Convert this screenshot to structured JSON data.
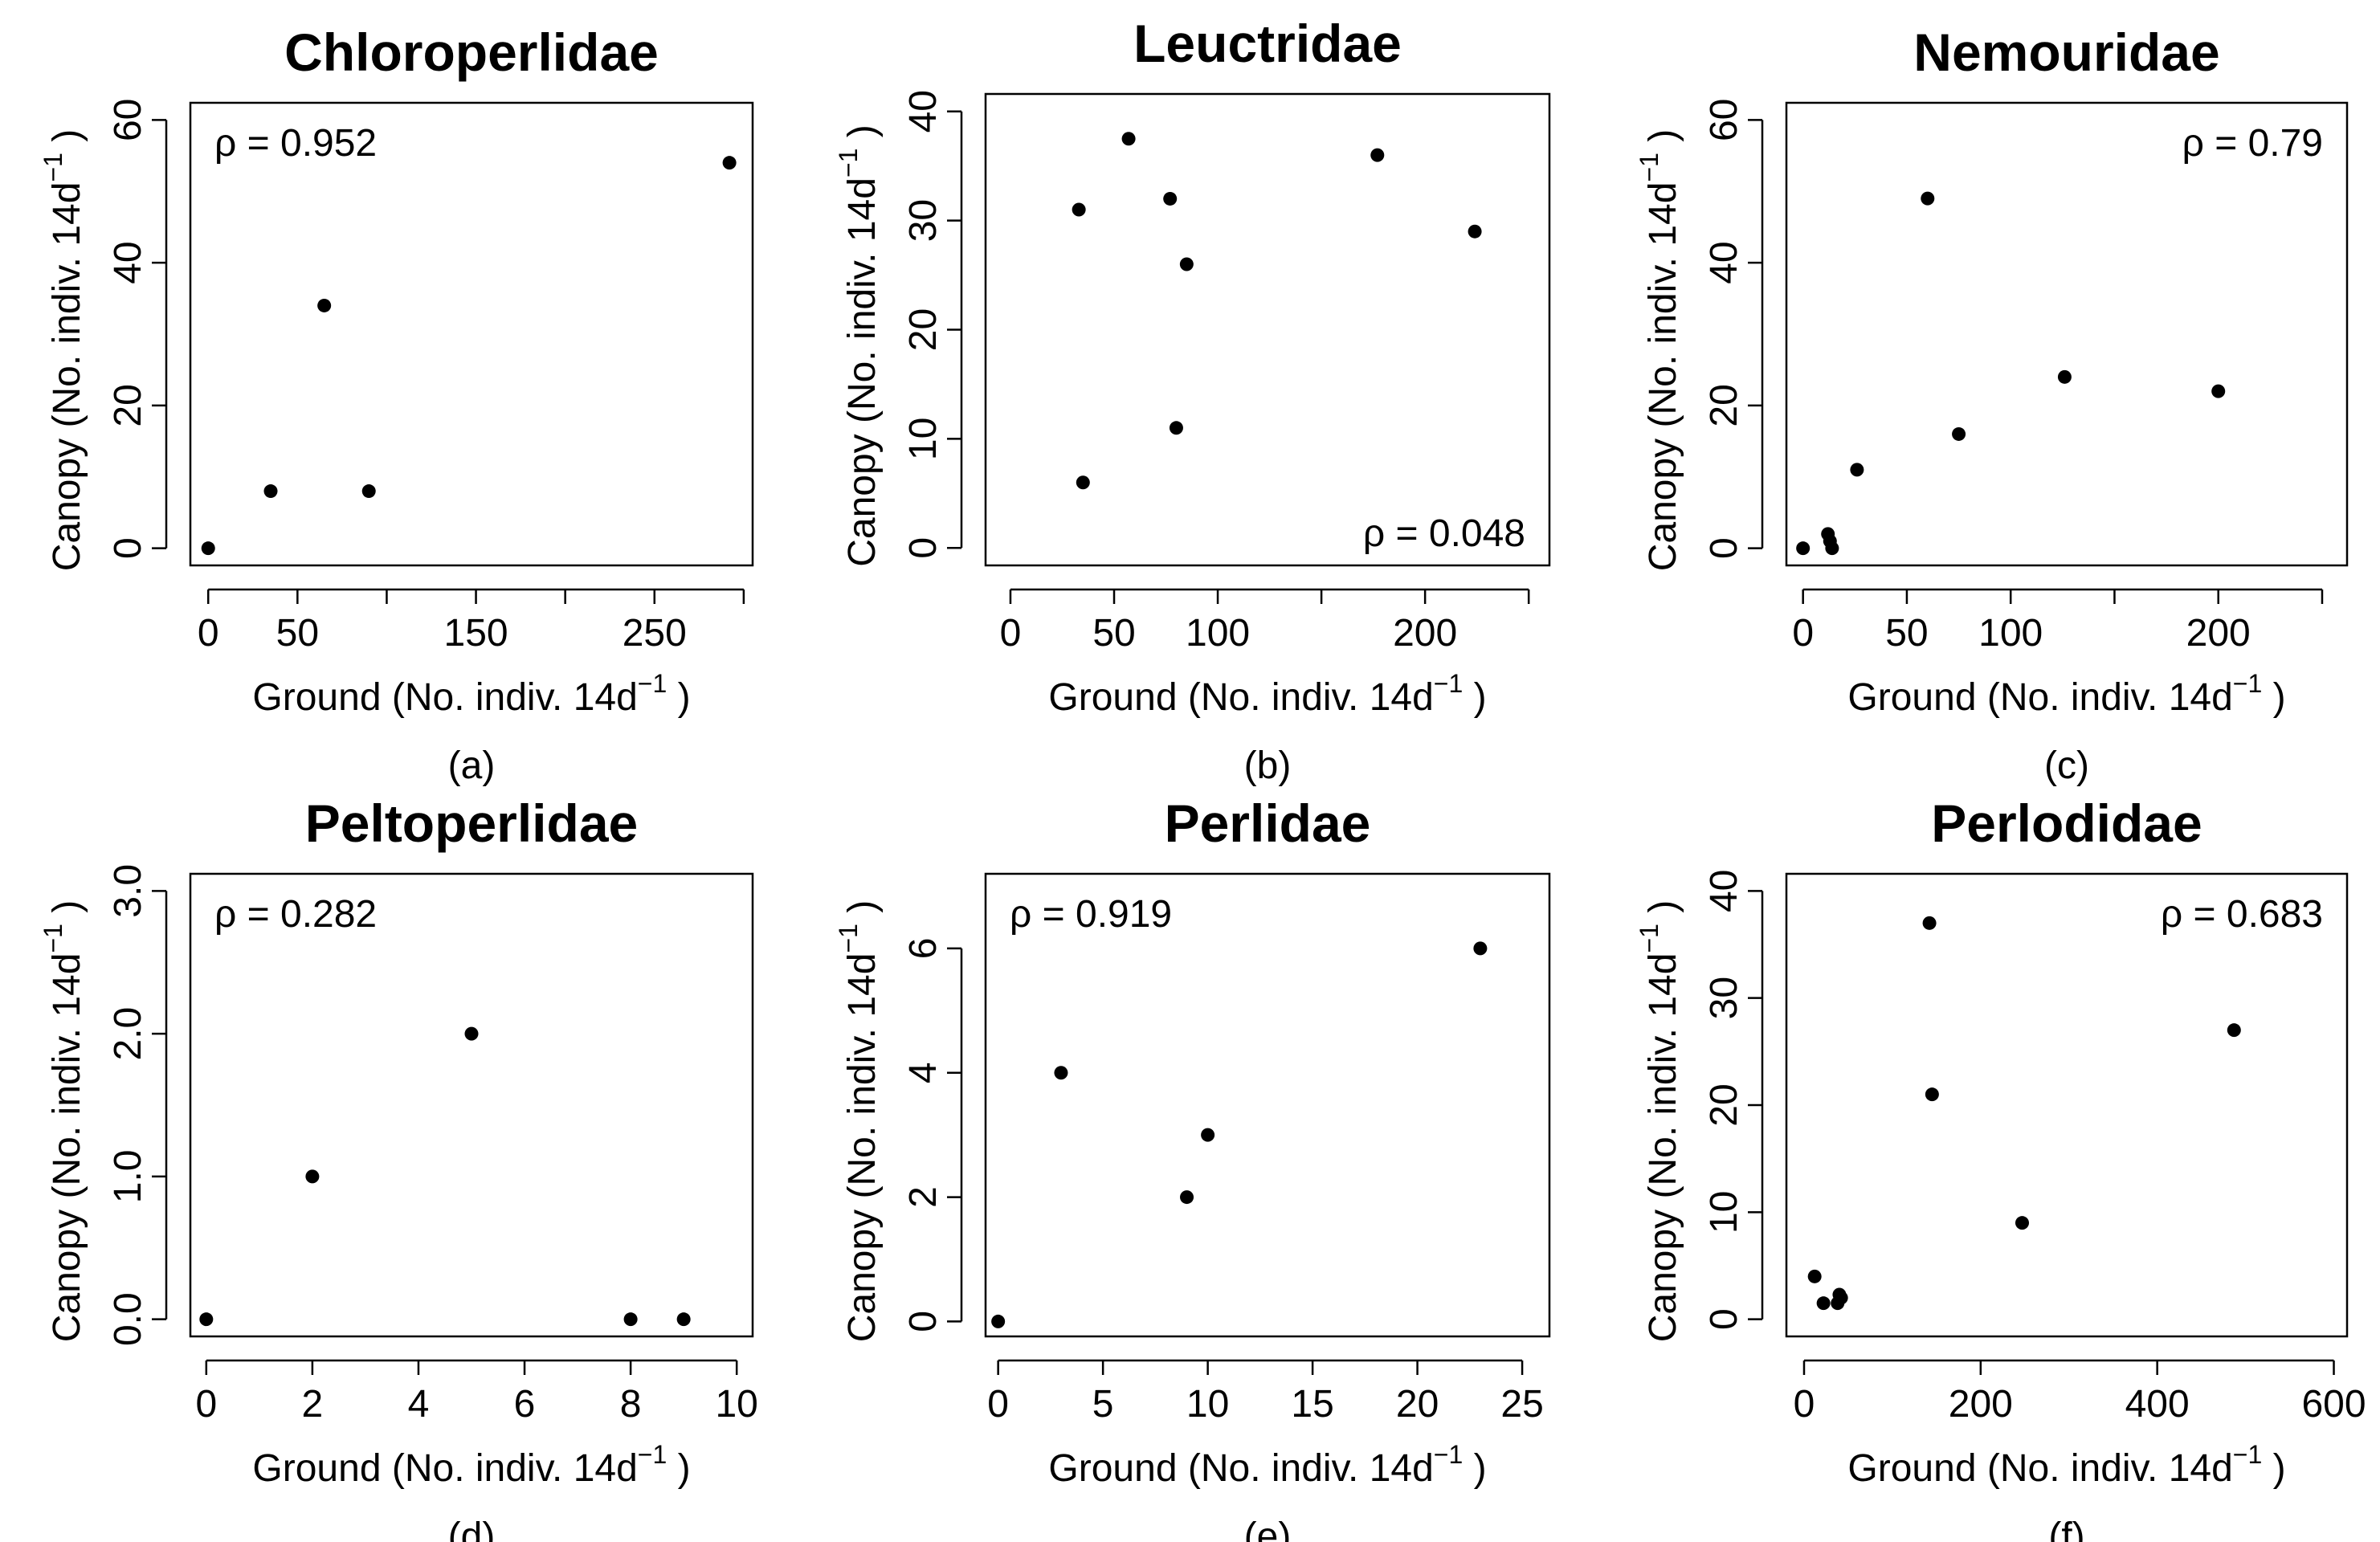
{
  "figure": {
    "xlabel_text": "Ground  (No. indiv. 14d",
    "xlabel_sup": "−1",
    "xlabel_close": " )",
    "ylabel_text": "Canopy  (No. indiv. 14d",
    "ylabel_sup": "−1",
    "ylabel_close": " )"
  },
  "chart_data": [
    {
      "type": "scatter",
      "panel": "(a)",
      "title": "Chloroperlidae",
      "rho": "ρ = 0.952",
      "rho_position": "top-left",
      "xlim": [
        -10,
        305
      ],
      "ylim": [
        -2.4,
        62.4
      ],
      "x_ticks": [
        0,
        50,
        100,
        150,
        200,
        250,
        300
      ],
      "x_tick_labels": [
        "0",
        "50",
        "",
        "150",
        "",
        "250",
        ""
      ],
      "y_ticks": [
        0,
        20,
        40,
        60
      ],
      "y_tick_labels": [
        "0",
        "20",
        "40",
        "60"
      ],
      "points": [
        [
          0,
          0
        ],
        [
          35,
          8
        ],
        [
          65,
          34
        ],
        [
          90,
          8
        ],
        [
          292,
          54
        ]
      ]
    },
    {
      "type": "scatter",
      "panel": "(b)",
      "title": "Leuctridae",
      "rho": "ρ = 0.048",
      "rho_position": "bottom-right",
      "xlim": [
        -12,
        260
      ],
      "ylim": [
        -1.6,
        41.6
      ],
      "x_ticks": [
        0,
        50,
        100,
        150,
        200,
        250
      ],
      "x_tick_labels": [
        "0",
        "50",
        "100",
        "",
        "200",
        ""
      ],
      "y_ticks": [
        0,
        10,
        20,
        30,
        40
      ],
      "y_tick_labels": [
        "0",
        "10",
        "20",
        "30",
        "40"
      ],
      "points": [
        [
          33,
          31
        ],
        [
          35,
          6
        ],
        [
          57,
          37.5
        ],
        [
          77,
          32
        ],
        [
          80,
          11
        ],
        [
          85,
          26
        ],
        [
          177,
          36
        ],
        [
          224,
          29
        ]
      ]
    },
    {
      "type": "scatter",
      "panel": "(c)",
      "title": "Nemouridae",
      "rho": "ρ = 0.79",
      "rho_position": "top-right",
      "xlim": [
        -8,
        262
      ],
      "ylim": [
        -2.4,
        62.4
      ],
      "x_ticks": [
        0,
        50,
        100,
        150,
        200,
        250
      ],
      "x_tick_labels": [
        "0",
        "50",
        "100",
        "",
        "200",
        ""
      ],
      "y_ticks": [
        0,
        20,
        40,
        60
      ],
      "y_tick_labels": [
        "0",
        "20",
        "40",
        "60"
      ],
      "points": [
        [
          0,
          0
        ],
        [
          12,
          2
        ],
        [
          13,
          1
        ],
        [
          14,
          0
        ],
        [
          26,
          11
        ],
        [
          60,
          49
        ],
        [
          75,
          16
        ],
        [
          126,
          24
        ],
        [
          200,
          22
        ]
      ]
    },
    {
      "type": "scatter",
      "panel": "(d)",
      "title": "Peltoperlidae",
      "rho": "ρ = 0.282",
      "rho_position": "top-left",
      "xlim": [
        -0.3,
        10.3
      ],
      "ylim": [
        -0.12,
        3.12
      ],
      "x_ticks": [
        0,
        2,
        4,
        6,
        8,
        10
      ],
      "x_tick_labels": [
        "0",
        "2",
        "4",
        "6",
        "8",
        "10"
      ],
      "y_ticks": [
        0,
        1,
        2,
        3
      ],
      "y_tick_labels": [
        "0.0",
        "1.0",
        "2.0",
        "3.0"
      ],
      "points": [
        [
          0,
          0
        ],
        [
          2,
          1
        ],
        [
          5,
          2
        ],
        [
          8,
          0
        ],
        [
          9,
          0
        ]
      ]
    },
    {
      "type": "scatter",
      "panel": "(e)",
      "title": "Perlidae",
      "rho": "ρ = 0.919",
      "rho_position": "top-left",
      "xlim": [
        -0.6,
        26.3
      ],
      "ylim": [
        -0.24,
        7.2
      ],
      "x_ticks": [
        0,
        5,
        10,
        15,
        20,
        25
      ],
      "x_tick_labels": [
        "0",
        "5",
        "10",
        "15",
        "20",
        "25"
      ],
      "y_ticks": [
        0,
        2,
        4,
        6
      ],
      "y_tick_labels": [
        "0",
        "2",
        "4",
        "6"
      ],
      "points": [
        [
          0,
          0
        ],
        [
          3,
          4
        ],
        [
          9,
          2
        ],
        [
          10,
          3
        ],
        [
          23,
          6
        ]
      ]
    },
    {
      "type": "scatter",
      "panel": "(f)",
      "title": "Perlodidae",
      "rho": "ρ = 0.683",
      "rho_position": "top-right",
      "xlim": [
        -20,
        615
      ],
      "ylim": [
        -1.6,
        41.6
      ],
      "x_ticks": [
        0,
        200,
        400,
        600
      ],
      "x_tick_labels": [
        "0",
        "200",
        "400",
        "600"
      ],
      "y_ticks": [
        0,
        10,
        20,
        30,
        40
      ],
      "y_tick_labels": [
        "0",
        "10",
        "20",
        "30",
        "40"
      ],
      "points": [
        [
          12,
          4
        ],
        [
          22,
          1.5
        ],
        [
          38,
          1.5
        ],
        [
          40,
          2.3
        ],
        [
          42,
          2
        ],
        [
          142,
          37
        ],
        [
          145,
          21
        ],
        [
          247,
          9
        ],
        [
          487,
          27
        ]
      ]
    }
  ]
}
